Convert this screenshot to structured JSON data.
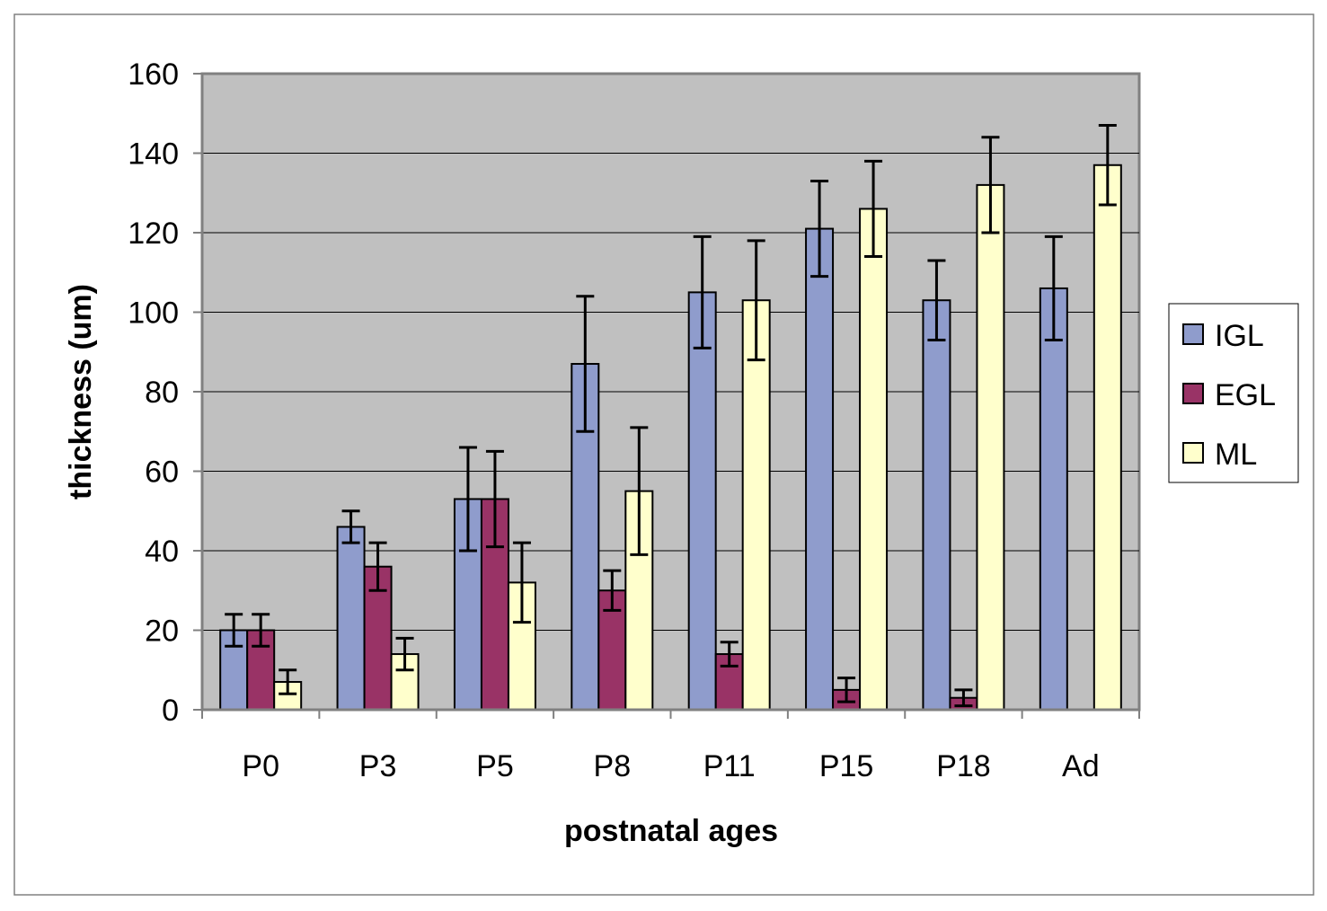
{
  "chart_data": {
    "type": "bar",
    "title": "",
    "xlabel": "postnatal ages",
    "ylabel": "thickness (um)",
    "ylim": [
      0,
      160
    ],
    "yticks": [
      0,
      20,
      40,
      60,
      80,
      100,
      120,
      140,
      160
    ],
    "grid": true,
    "legend_position": "right",
    "categories": [
      "P0",
      "P3",
      "P5",
      "P8",
      "P11",
      "P15",
      "P18",
      "Ad"
    ],
    "series": [
      {
        "name": "IGL",
        "color": "#8f9ccc",
        "values": [
          20,
          46,
          53,
          87,
          105,
          121,
          103,
          106
        ],
        "errors": [
          4,
          4,
          13,
          17,
          14,
          12,
          10,
          13
        ]
      },
      {
        "name": "EGL",
        "color": "#993366",
        "values": [
          20,
          36,
          53,
          30,
          14,
          5,
          3,
          0
        ],
        "errors": [
          4,
          6,
          12,
          5,
          3,
          3,
          2,
          0
        ]
      },
      {
        "name": "ML",
        "color": "#ffffcc",
        "values": [
          7,
          14,
          32,
          55,
          103,
          126,
          132,
          137
        ],
        "errors": [
          3,
          4,
          10,
          16,
          15,
          12,
          12,
          10
        ]
      }
    ]
  },
  "colors": {
    "plot_background": "#c0c0c0",
    "gridline": "#000000",
    "bar_outline": "#000000",
    "error_bar": "#000000"
  }
}
